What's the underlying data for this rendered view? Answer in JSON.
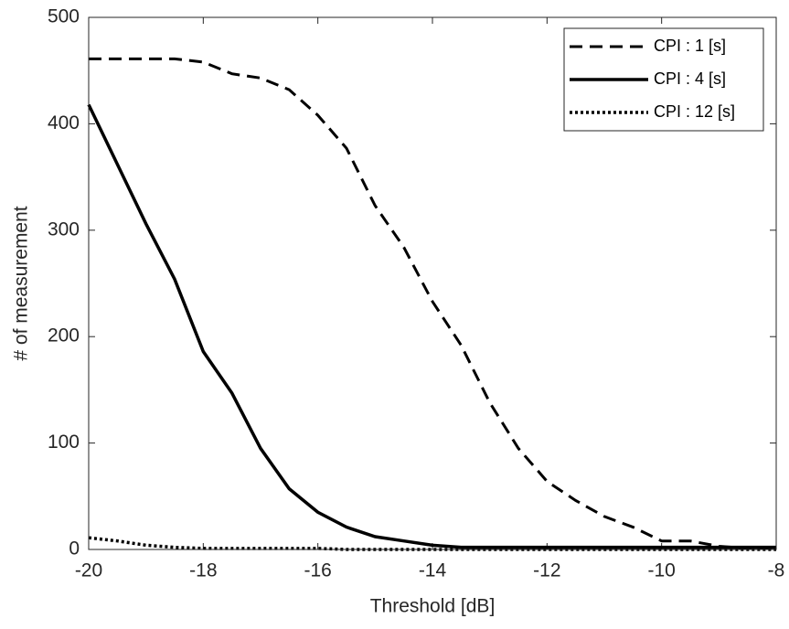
{
  "chart_data": {
    "type": "line",
    "xlabel": "Threshold [dB]",
    "ylabel": "# of measurement",
    "x": [
      -20,
      -19.5,
      -19,
      -18.5,
      -18,
      -17.5,
      -17,
      -16.5,
      -16,
      -15.5,
      -15,
      -14.5,
      -14,
      -13.5,
      -13,
      -12.5,
      -12,
      -11.5,
      -11,
      -10.5,
      -10,
      -9.5,
      -9,
      -8.5,
      -8
    ],
    "series": [
      {
        "name": "CPI : 1 [s]",
        "color": "#000000",
        "linestyle": "dashed",
        "values": [
          461,
          461,
          461,
          461,
          458,
          447,
          443,
          432,
          408,
          377,
          323,
          284,
          233,
          192,
          138,
          95,
          64,
          46,
          31,
          21,
          8,
          8,
          3,
          1,
          1
        ]
      },
      {
        "name": "CPI : 4 [s]",
        "color": "#000000",
        "linestyle": "solid",
        "values": [
          418,
          362,
          306,
          254,
          186,
          147,
          95,
          57,
          35,
          21,
          12,
          8,
          4,
          2,
          2,
          2,
          2,
          2,
          2,
          2,
          2,
          2,
          2,
          2,
          2
        ]
      },
      {
        "name": "CPI : 12 [s]",
        "color": "#000000",
        "linestyle": "dotted",
        "values": [
          11,
          8,
          4,
          2,
          1,
          1,
          1,
          1,
          1,
          0,
          0,
          0,
          0,
          0,
          0,
          0,
          0,
          0,
          0,
          0,
          0,
          0,
          0,
          0,
          0
        ]
      }
    ],
    "xlim": [
      -20,
      -8
    ],
    "xticks": [
      -20,
      -18,
      -16,
      -14,
      -12,
      -10,
      -8
    ],
    "ylim": [
      0,
      500
    ],
    "yticks": [
      0,
      100,
      200,
      300,
      400,
      500
    ],
    "grid": false,
    "legend": "northeast"
  }
}
